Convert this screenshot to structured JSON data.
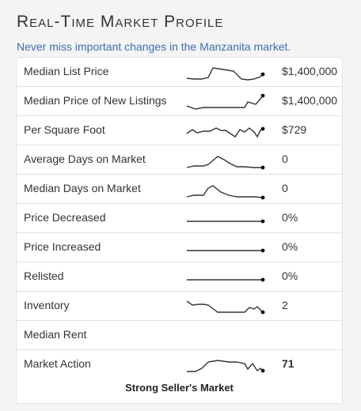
{
  "header": {
    "title": "Real-Time Market Profile",
    "subtitle": "Never miss important changes in the Manzanita market."
  },
  "rows": [
    {
      "label": "Median List Price",
      "value": "$1,400,000",
      "spark": "3,20 12,21 22,21 30,19 36,7 50,9 62,11 72,21 80,22 88,21 96,18 99,15"
    },
    {
      "label": "Median Price of New Listings",
      "value": "$1,400,000",
      "spark": "3,18 14,22 24,20 40,20 58,20 76,20 80,13 90,16 96,9 99,5"
    },
    {
      "label": "Per Square Foot",
      "value": "$729",
      "spark": "3,16 10,11 16,15 24,13 32,13 40,9 46,12 52,12 64,20 70,11 76,14 82,9 88,14 92,20 96,12 99,10"
    },
    {
      "label": "Average Days on Market",
      "value": "0",
      "spark": "3,22 12,20 24,20 30,18 42,8 50,12 56,16 66,21 76,21 88,22 99,22"
    },
    {
      "label": "Median Days on Market",
      "value": "0",
      "spark": "3,22 12,20 24,20 30,11 36,8 46,16 56,20 66,22 80,22 88,22 99,23"
    },
    {
      "label": "Price Decreased",
      "value": "0%",
      "spark": "3,16 99,16"
    },
    {
      "label": "Price Increased",
      "value": "0%",
      "spark": "3,16 99,16"
    },
    {
      "label": "Relisted",
      "value": "0%",
      "spark": "3,16 99,16"
    },
    {
      "label": "Inventory",
      "value": "2",
      "spark": "3,6 10,11 18,10 24,10 30,11 42,20 56,20 68,20 76,20 82,14 88,16 92,13 96,17 99,20"
    },
    {
      "label": "Median Rent",
      "value": "",
      "spark": ""
    },
    {
      "label": "Market Action",
      "value": "71",
      "spark": "3,21 14,21 22,17 30,9 42,7 56,9 66,9 76,11 80,18 86,11 92,20 96,17 99,20"
    }
  ],
  "footer": {
    "verdict": "Strong Seller's Market"
  }
}
